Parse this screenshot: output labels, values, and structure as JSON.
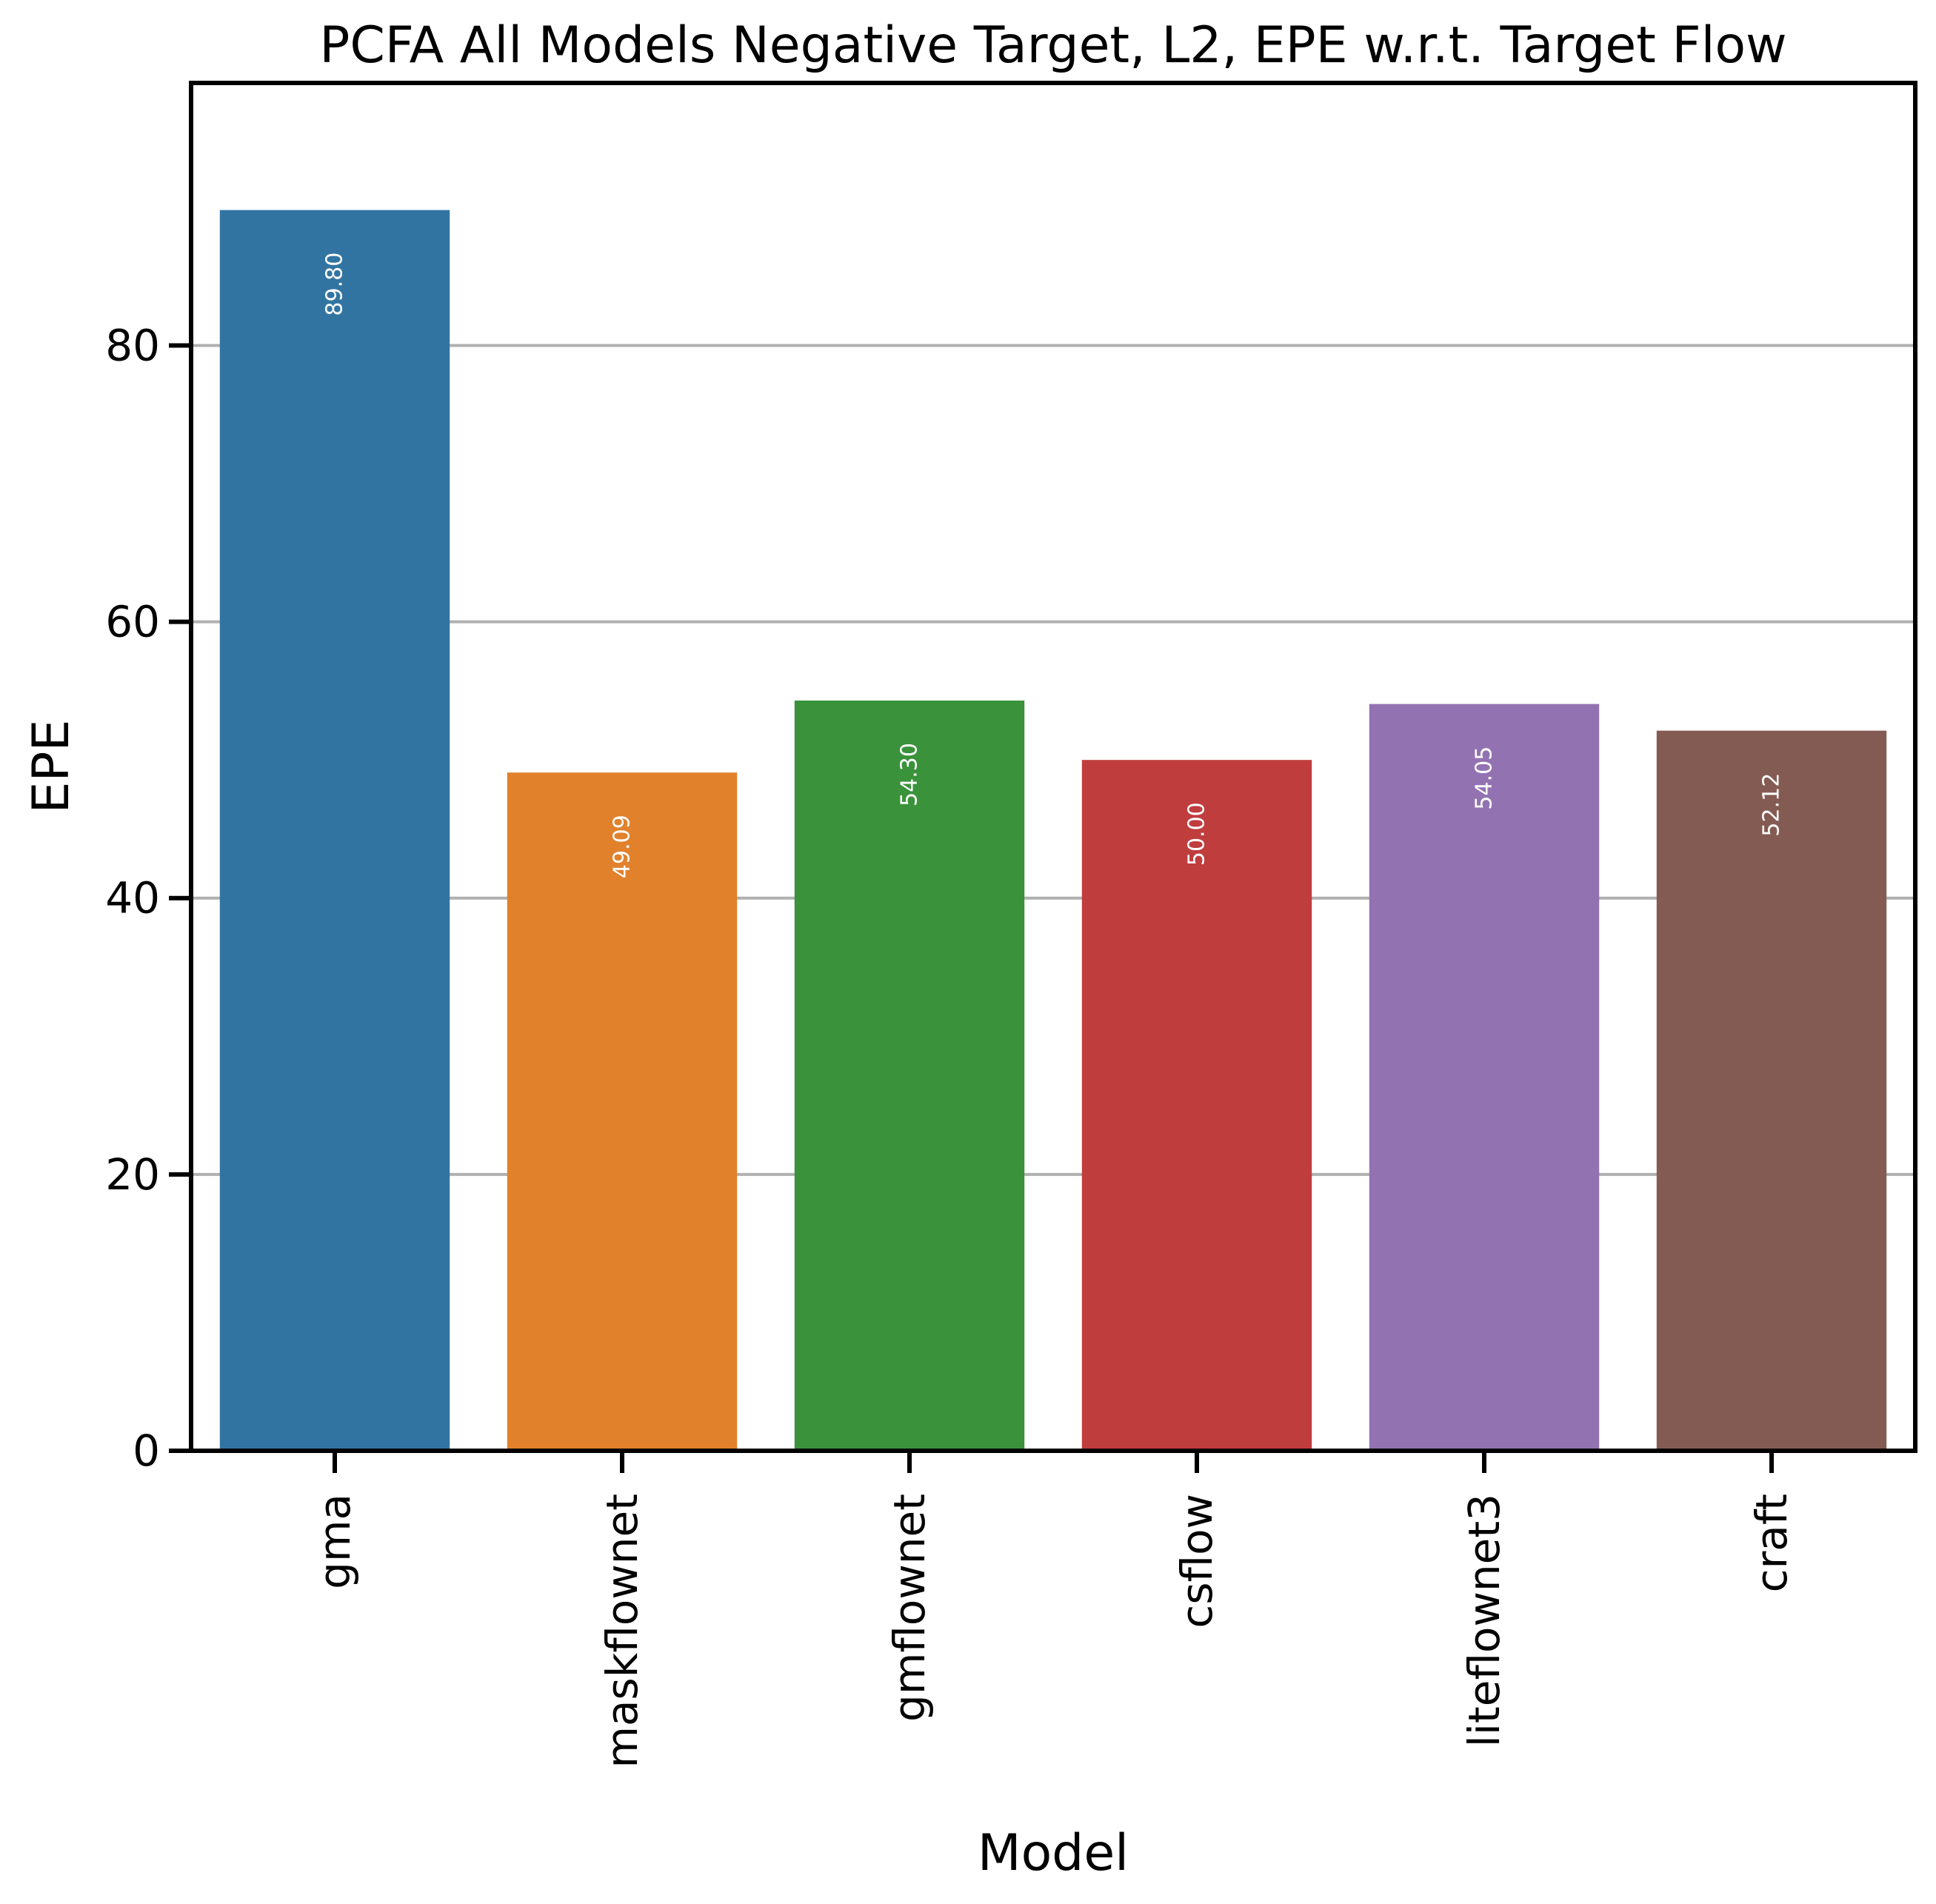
{
  "chart_data": {
    "type": "bar",
    "title": "PCFA All Models Negative Target, L2, EPE w.r.t. Target Flow",
    "xlabel": "Model",
    "ylabel": "EPE",
    "categories": [
      "gma",
      "maskflownet",
      "gmflownet",
      "csflow",
      "liteflownet3",
      "craft"
    ],
    "values": [
      89.8,
      49.09,
      54.3,
      50.0,
      54.05,
      52.12
    ],
    "value_labels": [
      "89.80",
      "49.09",
      "54.30",
      "50.00",
      "54.05",
      "52.12"
    ],
    "colors": [
      "#3274a1",
      "#e1812c",
      "#3a923a",
      "#c03d3e",
      "#9372b2",
      "#845b53"
    ],
    "ylim": [
      0,
      99
    ],
    "yticks": [
      0,
      20,
      40,
      60,
      80
    ],
    "ytick_labels": [
      "0",
      "20",
      "40",
      "60",
      "80"
    ],
    "grid": "horizontal",
    "legend": "none"
  }
}
